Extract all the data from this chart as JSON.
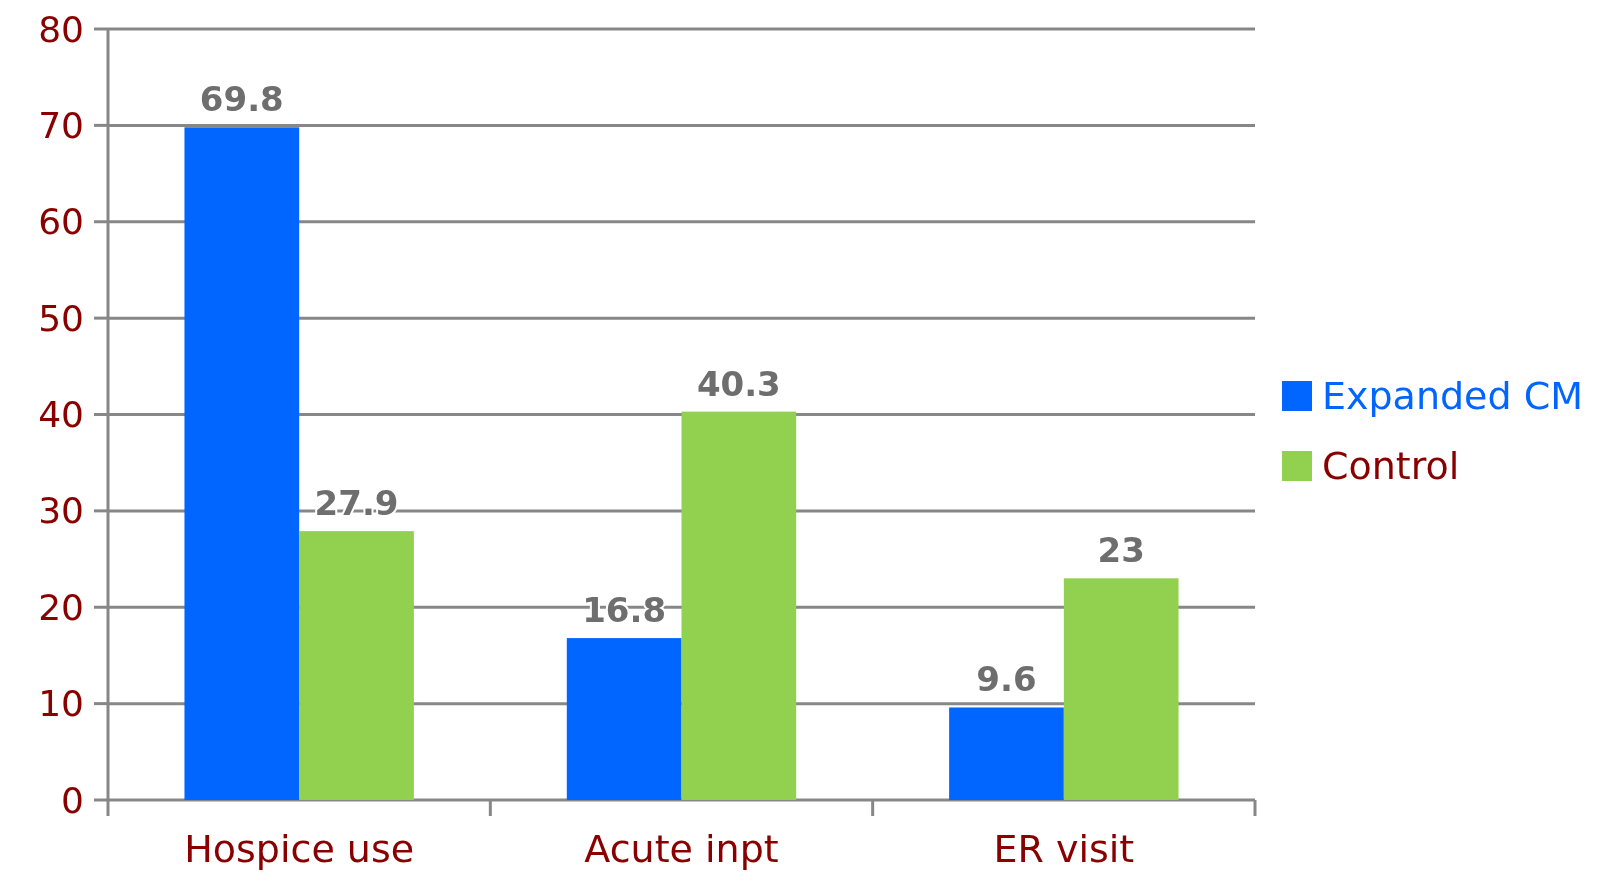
{
  "chart_data": {
    "type": "bar",
    "categories": [
      "Hospice use",
      "Acute inpt",
      "ER visit"
    ],
    "series": [
      {
        "name": "Expanded CM",
        "color": "#0066ff",
        "values": [
          69.8,
          16.8,
          9.6
        ]
      },
      {
        "name": "Control",
        "color": "#92d050",
        "values": [
          27.9,
          40.3,
          23
        ]
      }
    ],
    "ylim": [
      0,
      80
    ],
    "yticks": [
      0,
      10,
      20,
      30,
      40,
      50,
      60,
      70,
      80
    ],
    "grid": "y",
    "legend": "right",
    "data_labels": true
  }
}
